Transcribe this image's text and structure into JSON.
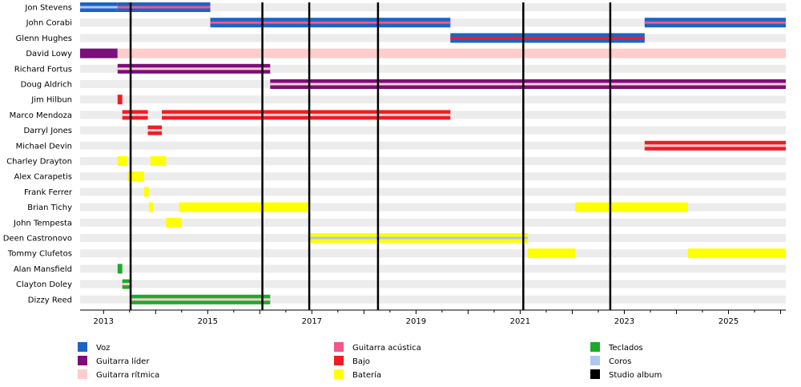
{
  "chart_data": {
    "type": "timeline",
    "title": "",
    "xlabel": "",
    "ylabel": "",
    "xlim": [
      2012.55,
      2026.1
    ],
    "x_ticks": [
      2013,
      2015,
      2017,
      2019,
      2021,
      2023,
      2025
    ],
    "grid": "horizontal row stripes",
    "legend_placement": "bottom",
    "legend": [
      {
        "role": "vocals",
        "label": "Voz",
        "color": "#1E63C0"
      },
      {
        "role": "lead",
        "label": "Guitarra líder",
        "color": "#7B0F7B"
      },
      {
        "role": "rhythm",
        "label": "Guitarra rítmica",
        "color": "#FFCCCC"
      },
      {
        "role": "acoustic",
        "label": "Guitarra acústica",
        "color": "#F0578A"
      },
      {
        "role": "bass",
        "label": "Bajo",
        "color": "#F01C24"
      },
      {
        "role": "drums",
        "label": "Batería",
        "color": "#FFFF00"
      },
      {
        "role": "keys",
        "label": "Teclados",
        "color": "#1CAA2C"
      },
      {
        "role": "backing",
        "label": "Coros",
        "color": "#AEC7F2"
      },
      {
        "role": "album",
        "label": "Studio album",
        "color": "#000000"
      }
    ],
    "album_lines": [
      2013.52,
      2016.05,
      2016.95,
      2018.27,
      2021.06,
      2022.73
    ],
    "members": [
      {
        "name": "Jon Stevens",
        "bars": [
          {
            "start": 2012.55,
            "end": 2013.27,
            "role": "vocals",
            "secondary": "backing"
          },
          {
            "start": 2013.27,
            "end": 2015.05,
            "role": "vocals",
            "secondary": "acoustic"
          }
        ]
      },
      {
        "name": "John Corabi",
        "bars": [
          {
            "start": 2015.05,
            "end": 2019.66,
            "role": "vocals",
            "secondary": "acoustic"
          },
          {
            "start": 2023.39,
            "end": 2026.1,
            "role": "vocals",
            "secondary": "acoustic"
          }
        ]
      },
      {
        "name": "Glenn Hughes",
        "bars": [
          {
            "start": 2019.66,
            "end": 2023.39,
            "role": "vocals",
            "secondary": "bass"
          }
        ]
      },
      {
        "name": "David Lowy",
        "bars": [
          {
            "start": 2012.55,
            "end": 2013.27,
            "role": "lead"
          },
          {
            "start": 2013.27,
            "end": 2026.1,
            "role": "rhythm"
          }
        ]
      },
      {
        "name": "Richard Fortus",
        "bars": [
          {
            "start": 2013.27,
            "end": 2016.2,
            "role": "lead",
            "secondary": "rhythm"
          }
        ]
      },
      {
        "name": "Doug Aldrich",
        "bars": [
          {
            "start": 2016.2,
            "end": 2026.1,
            "role": "lead",
            "secondary": "rhythm"
          }
        ]
      },
      {
        "name": "Jim Hilbun",
        "bars": [
          {
            "start": 2013.27,
            "end": 2013.36,
            "role": "bass"
          }
        ]
      },
      {
        "name": "Marco Mendoza",
        "bars": [
          {
            "start": 2013.36,
            "end": 2013.85,
            "role": "bass",
            "secondary": "rhythm"
          },
          {
            "start": 2014.12,
            "end": 2019.66,
            "role": "bass",
            "secondary": "rhythm"
          }
        ]
      },
      {
        "name": "Darryl Jones",
        "bars": [
          {
            "start": 2013.85,
            "end": 2014.12,
            "role": "bass",
            "secondary": "rhythm"
          }
        ]
      },
      {
        "name": "Michael Devin",
        "bars": [
          {
            "start": 2023.39,
            "end": 2026.1,
            "role": "bass",
            "secondary": "rhythm"
          }
        ]
      },
      {
        "name": "Charley Drayton",
        "bars": [
          {
            "start": 2013.27,
            "end": 2013.46,
            "role": "drums"
          },
          {
            "start": 2013.9,
            "end": 2014.2,
            "role": "drums"
          }
        ]
      },
      {
        "name": "Alex Carapetis",
        "bars": [
          {
            "start": 2013.46,
            "end": 2013.78,
            "role": "drums"
          }
        ]
      },
      {
        "name": "Frank Ferrer",
        "bars": [
          {
            "start": 2013.78,
            "end": 2013.87,
            "role": "drums"
          }
        ]
      },
      {
        "name": "Brian Tichy",
        "bars": [
          {
            "start": 2013.87,
            "end": 2013.95,
            "role": "drums"
          },
          {
            "start": 2014.45,
            "end": 2016.93,
            "role": "drums"
          },
          {
            "start": 2022.06,
            "end": 2024.22,
            "role": "drums"
          }
        ]
      },
      {
        "name": "John Tempesta",
        "bars": [
          {
            "start": 2014.2,
            "end": 2014.5,
            "role": "drums"
          }
        ]
      },
      {
        "name": "Deen Castronovo",
        "bars": [
          {
            "start": 2016.93,
            "end": 2021.15,
            "role": "drums",
            "secondary": "backing"
          }
        ]
      },
      {
        "name": "Tommy Clufetos",
        "bars": [
          {
            "start": 2021.15,
            "end": 2022.06,
            "role": "drums"
          },
          {
            "start": 2024.22,
            "end": 2026.1,
            "role": "drums"
          }
        ]
      },
      {
        "name": "Alan Mansfield",
        "bars": [
          {
            "start": 2013.27,
            "end": 2013.36,
            "role": "keys"
          }
        ]
      },
      {
        "name": "Clayton Doley",
        "bars": [
          {
            "start": 2013.36,
            "end": 2013.54,
            "role": "keys",
            "secondary": "rhythm"
          }
        ]
      },
      {
        "name": "Dizzy Reed",
        "bars": [
          {
            "start": 2013.54,
            "end": 2016.2,
            "role": "keys",
            "secondary": "rhythm"
          }
        ]
      }
    ]
  }
}
